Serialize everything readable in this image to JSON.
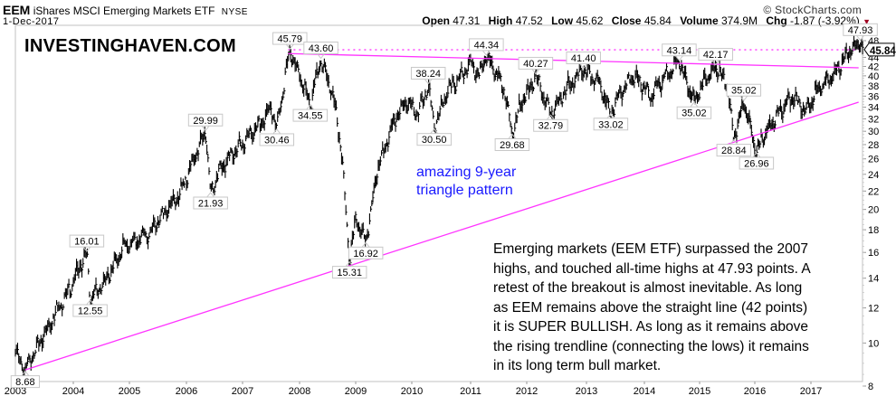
{
  "header": {
    "symbol": "EEM",
    "name": "iShares MSCI Emerging Markets ETF",
    "exchange": "NYSE",
    "date": "1-Dec-2017",
    "brand": "© StockCharts.com",
    "open_label": "Open",
    "open": "47.31",
    "high_label": "High",
    "high": "47.52",
    "low_label": "Low",
    "low": "45.62",
    "close_label": "Close",
    "close": "45.84",
    "volume_label": "Volume",
    "volume": "374.9M",
    "chg_label": "Chg",
    "chg": "-1.87 (-3.92%)",
    "chg_arrow": "▼"
  },
  "watermark": "INVESTINGHAVEN.COM",
  "notes": {
    "blue": [
      "amazing 9-year",
      "triangle pattern"
    ],
    "main": [
      "Emerging markets (EEM ETF) surpassed the 2007",
      "highs, and touched all-time highs at 47.93 points. A",
      "retest of the breakout is almost inevitable. As long",
      "as EEM remains above the straight line (42 points)",
      "it is SUPER BULLISH. As long as it remains above",
      "the rising trendline (connecting the lows) it remains",
      "in its long term bull market."
    ]
  },
  "chart_data": {
    "type": "ohlc",
    "title": "EEM iShares MSCI Emerging Markets ETF",
    "y_scale": "log",
    "ylim": [
      8,
      48
    ],
    "y_ticks": [
      "48",
      "44",
      "42",
      "40",
      "38",
      "36",
      "34",
      "32",
      "30",
      "28",
      "26",
      "24",
      "22",
      "20",
      "18",
      "16",
      "14",
      "12",
      "10",
      "8"
    ],
    "x_ticks": [
      "2003",
      "2004",
      "2005",
      "2006",
      "2007",
      "2008",
      "2009",
      "2010",
      "2011",
      "2012",
      "2013",
      "2014",
      "2015",
      "2016",
      "2017"
    ],
    "last_price": "45.84",
    "colors": {
      "bars": "#000000",
      "trendline": "#ff33ff",
      "note": "#1a1aff"
    },
    "price_path": [
      [
        2003.0,
        9.6
      ],
      [
        2003.17,
        8.68
      ],
      [
        2003.5,
        10.5
      ],
      [
        2003.9,
        13
      ],
      [
        2004.24,
        16.01
      ],
      [
        2004.3,
        12.55
      ],
      [
        2004.6,
        14
      ],
      [
        2004.9,
        16.5
      ],
      [
        2005.3,
        17.5
      ],
      [
        2005.6,
        19.5
      ],
      [
        2005.9,
        22
      ],
      [
        2006.34,
        29.99
      ],
      [
        2006.43,
        21.93
      ],
      [
        2006.6,
        24.5
      ],
      [
        2006.9,
        27.5
      ],
      [
        2007.3,
        31
      ],
      [
        2007.5,
        34
      ],
      [
        2007.6,
        30.46
      ],
      [
        2007.83,
        45.79
      ],
      [
        2008.0,
        40
      ],
      [
        2008.19,
        34.55
      ],
      [
        2008.38,
        43.6
      ],
      [
        2008.6,
        36
      ],
      [
        2008.75,
        27
      ],
      [
        2008.89,
        15.31
      ],
      [
        2009.0,
        19
      ],
      [
        2009.18,
        16.92
      ],
      [
        2009.4,
        25
      ],
      [
        2009.7,
        32
      ],
      [
        2009.9,
        35
      ],
      [
        2010.1,
        33
      ],
      [
        2010.28,
        38.24
      ],
      [
        2010.38,
        30.5
      ],
      [
        2010.6,
        37
      ],
      [
        2010.9,
        41
      ],
      [
        2011.0,
        43
      ],
      [
        2011.15,
        40
      ],
      [
        2011.28,
        44.34
      ],
      [
        2011.5,
        40
      ],
      [
        2011.6,
        37
      ],
      [
        2011.74,
        29.68
      ],
      [
        2011.9,
        35
      ],
      [
        2012.0,
        36
      ],
      [
        2012.15,
        40.27
      ],
      [
        2012.4,
        32.79
      ],
      [
        2012.7,
        38
      ],
      [
        2012.95,
        41.4
      ],
      [
        2013.2,
        39
      ],
      [
        2013.42,
        33.02
      ],
      [
        2013.6,
        37
      ],
      [
        2013.8,
        40
      ],
      [
        2014.0,
        38
      ],
      [
        2014.1,
        36
      ],
      [
        2014.3,
        39
      ],
      [
        2014.63,
        43.14
      ],
      [
        2014.9,
        35.02
      ],
      [
        2015.1,
        39
      ],
      [
        2015.29,
        42.17
      ],
      [
        2015.5,
        38
      ],
      [
        2015.62,
        28.84
      ],
      [
        2015.8,
        35.02
      ],
      [
        2016.03,
        26.96
      ],
      [
        2016.2,
        30
      ],
      [
        2016.5,
        34
      ],
      [
        2016.7,
        36
      ],
      [
        2016.9,
        33
      ],
      [
        2017.1,
        37
      ],
      [
        2017.4,
        40
      ],
      [
        2017.6,
        44
      ],
      [
        2017.88,
        47.93
      ],
      [
        2017.92,
        45.84
      ]
    ],
    "annotations": [
      {
        "label": "8.68",
        "date": 2003.17,
        "value": 8.68,
        "side": "low"
      },
      {
        "label": "16.01",
        "date": 2004.24,
        "value": 16.01,
        "side": "high"
      },
      {
        "label": "12.55",
        "date": 2004.3,
        "value": 12.55,
        "side": "low"
      },
      {
        "label": "29.99",
        "date": 2006.34,
        "value": 29.99,
        "side": "high"
      },
      {
        "label": "21.93",
        "date": 2006.43,
        "value": 21.93,
        "side": "low"
      },
      {
        "label": "30.46",
        "date": 2007.6,
        "value": 30.46,
        "side": "low"
      },
      {
        "label": "45.79",
        "date": 2007.83,
        "value": 45.79,
        "side": "high"
      },
      {
        "label": "34.55",
        "date": 2008.19,
        "value": 34.55,
        "side": "low"
      },
      {
        "label": "43.60",
        "date": 2008.38,
        "value": 43.6,
        "side": "high"
      },
      {
        "label": "15.31",
        "date": 2008.89,
        "value": 15.31,
        "side": "low"
      },
      {
        "label": "16.92",
        "date": 2009.18,
        "value": 16.92,
        "side": "low"
      },
      {
        "label": "38.24",
        "date": 2010.28,
        "value": 38.24,
        "side": "high"
      },
      {
        "label": "30.50",
        "date": 2010.38,
        "value": 30.5,
        "side": "low"
      },
      {
        "label": "44.34",
        "date": 2011.28,
        "value": 44.34,
        "side": "high"
      },
      {
        "label": "29.68",
        "date": 2011.74,
        "value": 29.68,
        "side": "low"
      },
      {
        "label": "40.27",
        "date": 2012.15,
        "value": 40.27,
        "side": "high"
      },
      {
        "label": "32.79",
        "date": 2012.4,
        "value": 32.79,
        "side": "low"
      },
      {
        "label": "41.40",
        "date": 2012.95,
        "value": 41.4,
        "side": "high"
      },
      {
        "label": "33.02",
        "date": 2013.42,
        "value": 33.02,
        "side": "low"
      },
      {
        "label": "43.14",
        "date": 2014.63,
        "value": 43.14,
        "side": "high"
      },
      {
        "label": "35.02",
        "date": 2014.9,
        "value": 35.02,
        "side": "low"
      },
      {
        "label": "42.17",
        "date": 2015.29,
        "value": 42.17,
        "side": "high"
      },
      {
        "label": "28.84",
        "date": 2015.62,
        "value": 28.84,
        "side": "low"
      },
      {
        "label": "35.02",
        "date": 2015.8,
        "value": 35.02,
        "side": "high"
      },
      {
        "label": "26.96",
        "date": 2016.03,
        "value": 26.96,
        "side": "low"
      },
      {
        "label": "47.93",
        "date": 2017.88,
        "value": 47.93,
        "side": "high"
      }
    ],
    "trendlines": [
      {
        "name": "resistance",
        "style": "solid",
        "from": [
          2007.8,
          44.9
        ],
        "to": [
          2017.85,
          41.7
        ]
      },
      {
        "name": "2007-high",
        "style": "dotted",
        "from": [
          2007.8,
          45.79
        ],
        "to": [
          2017.85,
          45.79
        ]
      },
      {
        "name": "rising-support",
        "style": "solid",
        "from": [
          2003.17,
          8.7
        ],
        "to": [
          2017.85,
          34.9
        ]
      }
    ]
  }
}
